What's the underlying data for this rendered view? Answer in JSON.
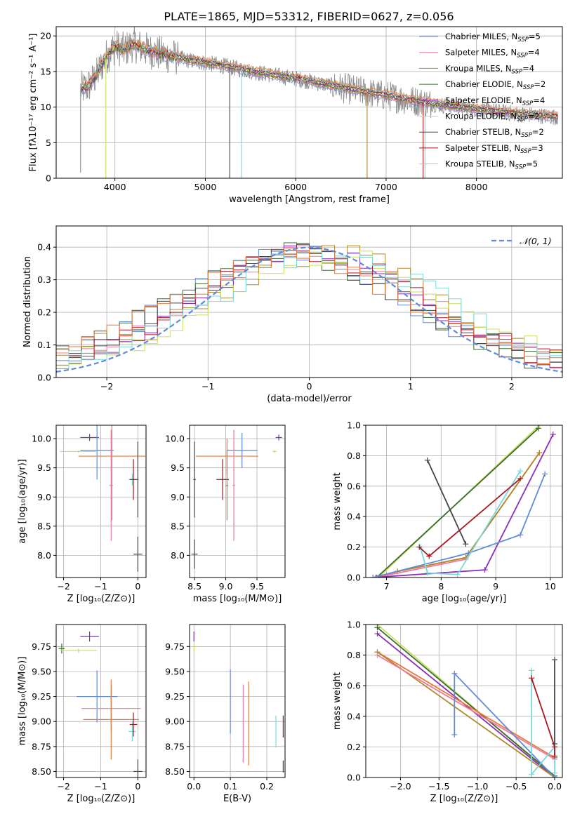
{
  "figure_title": "PLATE=1865, MJD=53312, FIBERID=0627, z=0.056",
  "colors": {
    "chabrier_miles": "#5f8ad8",
    "salpeter_miles": "#f0789c",
    "kroupa_miles": "#b0882a",
    "chabrier_elodie": "#3b6b30",
    "salpeter_elodie": "#8a2eb8",
    "kroupa_elodie": "#c8e05a",
    "chabrier_stelib": "#444444",
    "salpeter_stelib": "#a8141e",
    "kroupa_stelib": "#7ad8dc",
    "orange": "#e87a3a",
    "data": "#888888",
    "normal": "#5f8ad8"
  },
  "chart_data": [
    {
      "id": "spectrum",
      "type": "line",
      "xlabel": "wavelength [Angstrom, rest frame]",
      "ylabel": "Flux [fλ10⁻¹⁷ erg cm⁻² s⁻¹ A⁻¹]",
      "xlim": [
        3350,
        8950
      ],
      "ylim": [
        0,
        21.3
      ],
      "xticks": [
        4000,
        5000,
        6000,
        7000,
        8000
      ],
      "yticks": [
        0,
        5,
        10,
        15,
        20
      ],
      "legend_position": "top-right",
      "legend": [
        {
          "label": "Chabrier MILES, N",
          "sub": "SSP",
          "val": "=5",
          "color": "chabrier_miles"
        },
        {
          "label": "Salpeter MILES, N",
          "sub": "SSP",
          "val": "=4",
          "color": "salpeter_miles"
        },
        {
          "label": "Kroupa MILES, N",
          "sub": "SSP",
          "val": "=4",
          "color": "kroupa_miles"
        },
        {
          "label": "Chabrier ELODIE, N",
          "sub": "SSP",
          "val": "=2",
          "color": "chabrier_elodie"
        },
        {
          "label": "Salpeter ELODIE, N",
          "sub": "SSP",
          "val": "=4",
          "color": "salpeter_elodie"
        },
        {
          "label": "Kroupa ELODIE, N",
          "sub": "SSP",
          "val": "=2",
          "color": "kroupa_elodie"
        },
        {
          "label": "Chabrier STELIB, N",
          "sub": "SSP",
          "val": "=2",
          "color": "chabrier_stelib"
        },
        {
          "label": "Salpeter STELIB, N",
          "sub": "SSP",
          "val": "=3",
          "color": "salpeter_stelib"
        },
        {
          "label": "Kroupa STELIB, N",
          "sub": "SSP",
          "val": "=5",
          "color": "kroupa_stelib"
        }
      ],
      "continuum": {
        "x": [
          3620,
          3700,
          3800,
          3900,
          4000,
          4100,
          4200,
          4300,
          4400,
          4500,
          4600,
          4800,
          5000,
          5200,
          5400,
          5600,
          5800,
          6000,
          6200,
          6400,
          6600,
          6800,
          7000,
          7200,
          7400,
          7600,
          7800,
          8000,
          8200,
          8400,
          8600,
          8900
        ],
        "y": [
          12.5,
          12.8,
          14.5,
          17.0,
          18.5,
          18.0,
          18.8,
          18.3,
          17.8,
          17.5,
          17.2,
          16.6,
          16.2,
          15.8,
          15.3,
          14.8,
          14.4,
          14.0,
          13.5,
          13.0,
          12.5,
          12.0,
          11.6,
          11.1,
          10.7,
          10.3,
          10.0,
          9.7,
          9.4,
          9.1,
          8.9,
          8.6
        ]
      },
      "dips": [
        {
          "x": 3620,
          "y": 0.8,
          "color": "data"
        },
        {
          "x": 3900,
          "y": 0,
          "color": "kroupa_elodie"
        },
        {
          "x": 5270,
          "y": 0,
          "color": "chabrier_stelib"
        },
        {
          "x": 5400,
          "y": 0,
          "color": "kroupa_stelib"
        },
        {
          "x": 6790,
          "y": 0,
          "color": "kroupa_miles"
        },
        {
          "x": 7410,
          "y": 0,
          "color": "salpeter_stelib"
        },
        {
          "x": 7430,
          "y": 0,
          "color": "kroupa_stelib"
        }
      ]
    },
    {
      "id": "residuals",
      "type": "step",
      "xlabel": "(data-model)/error",
      "ylabel": "Normed distribution",
      "xlim": [
        -2.5,
        2.5
      ],
      "ylim": [
        0,
        0.465
      ],
      "xticks": [
        -2,
        -1,
        0,
        1,
        2
      ],
      "yticks": [
        0.0,
        0.1,
        0.2,
        0.3,
        0.4
      ],
      "legend_position": "top-right",
      "legend_label": "𝒩(0, 1)",
      "bins": 40,
      "series_colors": [
        "chabrier_miles",
        "salpeter_miles",
        "kroupa_miles",
        "chabrier_elodie",
        "salpeter_elodie",
        "kroupa_elodie",
        "chabrier_stelib",
        "salpeter_stelib",
        "kroupa_stelib",
        "orange"
      ]
    },
    {
      "id": "age_vs_Z",
      "type": "errorbar",
      "xlabel": "Z [log₁₀(Z/Z⊙)]",
      "ylabel": "age  [log₁₀(age/yr)]",
      "xlim": [
        -2.2,
        0.22
      ],
      "ylim": [
        7.62,
        10.23
      ],
      "xticks": [
        -2,
        -1,
        0
      ],
      "yticks": [
        8.0,
        8.5,
        9.0,
        9.5,
        10.0
      ],
      "points": [
        {
          "x": -1.3,
          "y": 10.02,
          "xerr": 0.25,
          "yerr": 0.06,
          "color": "salpeter_elodie"
        },
        {
          "x": -1.1,
          "y": 9.8,
          "xerr": 0.45,
          "yerr": 0.5,
          "color": "chabrier_miles"
        },
        {
          "x": -1.6,
          "y": 9.78,
          "xerr": 0.5,
          "yerr": 0.02,
          "color": "kroupa_elodie"
        },
        {
          "x": -0.7,
          "y": 9.7,
          "xerr": 0.9,
          "yerr": 1.1,
          "color": "orange"
        },
        {
          "x": -0.72,
          "y": 9.2,
          "xerr": 0.05,
          "yerr": 0.95,
          "color": "salpeter_miles"
        },
        {
          "x": -0.15,
          "y": 9.3,
          "xerr": 0.1,
          "yerr": 0.1,
          "color": "kroupa_stelib"
        },
        {
          "x": -0.12,
          "y": 9.3,
          "xerr": 0.1,
          "yerr": 0.35,
          "color": "salpeter_stelib"
        },
        {
          "x": 0.0,
          "y": 8.02,
          "xerr": 0.12,
          "yerr": 0.3,
          "color": "chabrier_stelib"
        },
        {
          "x": 0.0,
          "y": 9.3,
          "xerr": 0.02,
          "yerr": 0.65,
          "color": "chabrier_stelib"
        }
      ]
    },
    {
      "id": "age_vs_mass",
      "type": "errorbar",
      "xlabel": "mass [log₁₀(M/M⊙)]",
      "xlim": [
        8.42,
        9.95
      ],
      "ylim": [
        7.62,
        10.23
      ],
      "xticks": [
        8.5,
        9.0,
        9.5
      ],
      "yticks": [
        8.0,
        8.5,
        9.0,
        9.5,
        10.0
      ],
      "points": [
        {
          "x": 9.85,
          "y": 10.02,
          "xerr": 0.05,
          "yerr": 0.05,
          "color": "salpeter_elodie"
        },
        {
          "x": 9.26,
          "y": 9.8,
          "xerr": 0.25,
          "yerr": 0.3,
          "color": "chabrier_miles"
        },
        {
          "x": 9.78,
          "y": 9.78,
          "xerr": 0.03,
          "yerr": 0.02,
          "color": "kroupa_elodie"
        },
        {
          "x": 9.02,
          "y": 9.7,
          "xerr": 0.5,
          "yerr": 0.3,
          "color": "orange"
        },
        {
          "x": 9.02,
          "y": 9.2,
          "xerr": 0.02,
          "yerr": 0.6,
          "color": "kroupa_miles"
        },
        {
          "x": 9.13,
          "y": 9.2,
          "xerr": 0.02,
          "yerr": 0.95,
          "color": "salpeter_miles"
        },
        {
          "x": 8.95,
          "y": 9.3,
          "xerr": 0.05,
          "yerr": 0.1,
          "color": "kroupa_stelib"
        },
        {
          "x": 8.95,
          "y": 9.3,
          "xerr": 0.1,
          "yerr": 0.35,
          "color": "salpeter_stelib"
        },
        {
          "x": 8.5,
          "y": 8.02,
          "xerr": 0.05,
          "yerr": 0.25,
          "color": "chabrier_stelib"
        },
        {
          "x": 8.5,
          "y": 9.3,
          "xerr": 0.02,
          "yerr": 0.65,
          "color": "chabrier_stelib"
        }
      ]
    },
    {
      "id": "weight_vs_age",
      "type": "line",
      "xlabel": "age  [log₁₀(age/yr)]",
      "ylabel": "mass weight",
      "xlim": [
        6.62,
        10.22
      ],
      "ylim": [
        0,
        1
      ],
      "xticks": [
        7,
        8,
        9,
        10
      ],
      "yticks": [
        0.0,
        0.2,
        0.4,
        0.6,
        0.8,
        1.0
      ],
      "series": [
        {
          "color": "kroupa_elodie",
          "x": [
            6.85,
            9.8
          ],
          "y": [
            0.0,
            1.0
          ]
        },
        {
          "color": "chabrier_elodie",
          "x": [
            6.82,
            9.78
          ],
          "y": [
            0.0,
            0.98
          ]
        },
        {
          "color": "orange",
          "x": [
            6.8,
            7.2,
            8.45,
            9.8
          ],
          "y": [
            0.0,
            0.04,
            0.13,
            0.82
          ]
        },
        {
          "color": "kroupa_miles",
          "x": [
            6.8,
            7.2,
            8.45,
            9.8
          ],
          "y": [
            0.0,
            0.04,
            0.13,
            0.82
          ]
        },
        {
          "color": "salpeter_miles",
          "x": [
            6.8,
            8.45
          ],
          "y": [
            0.0,
            0.12
          ]
        },
        {
          "color": "salpeter_elodie",
          "x": [
            6.75,
            8.8,
            10.05
          ],
          "y": [
            0.0,
            0.05,
            0.94
          ]
        },
        {
          "color": "chabrier_miles",
          "x": [
            6.75,
            8.5,
            9.45,
            9.9
          ],
          "y": [
            0.0,
            0.16,
            0.28,
            0.68
          ]
        },
        {
          "color": "kroupa_stelib",
          "x": [
            7.62,
            7.75,
            8.3,
            9.45
          ],
          "y": [
            0.2,
            0.03,
            0.02,
            0.7
          ]
        },
        {
          "color": "salpeter_stelib",
          "x": [
            7.6,
            7.78,
            9.45
          ],
          "y": [
            0.2,
            0.14,
            0.65
          ]
        },
        {
          "color": "chabrier_stelib",
          "x": [
            7.75,
            8.45
          ],
          "y": [
            0.77,
            0.22
          ]
        }
      ]
    },
    {
      "id": "mass_vs_Z",
      "type": "errorbar",
      "xlabel": "Z [log₁₀(Z/Z⊙)]",
      "ylabel": "mass [log₁₀(M/M⊙)]",
      "xlim": [
        -2.2,
        0.22
      ],
      "ylim": [
        8.44,
        9.97
      ],
      "xticks": [
        -2,
        -1,
        0
      ],
      "yticks": [
        8.5,
        8.75,
        9.0,
        9.25,
        9.5,
        9.75
      ],
      "points": [
        {
          "x": -1.3,
          "y": 9.85,
          "xerr": 0.25,
          "yerr": 0.05,
          "color": "salpeter_elodie"
        },
        {
          "x": -2.05,
          "y": 9.73,
          "xerr": 0.08,
          "yerr": 0.05,
          "color": "chabrier_elodie"
        },
        {
          "x": -1.6,
          "y": 9.71,
          "xerr": 0.5,
          "yerr": 0.02,
          "color": "kroupa_elodie"
        },
        {
          "x": -1.1,
          "y": 9.25,
          "xerr": 0.55,
          "yerr": 0.26,
          "color": "chabrier_miles"
        },
        {
          "x": -0.72,
          "y": 9.13,
          "xerr": 0.8,
          "yerr": 0.23,
          "color": "salpeter_miles"
        },
        {
          "x": -0.72,
          "y": 9.02,
          "xerr": 0.75,
          "yerr": 0.4,
          "color": "orange"
        },
        {
          "x": -0.15,
          "y": 8.9,
          "xerr": 0.1,
          "yerr": 0.1,
          "color": "kroupa_stelib"
        },
        {
          "x": -0.12,
          "y": 8.97,
          "xerr": 0.1,
          "yerr": 0.12,
          "color": "salpeter_stelib"
        },
        {
          "x": 0.0,
          "y": 8.5,
          "xerr": 0.12,
          "yerr": 0.12,
          "color": "chabrier_stelib"
        }
      ]
    },
    {
      "id": "mass_vs_ebv",
      "type": "errorbar",
      "xlabel": "E(B-V)",
      "xlim": [
        -0.012,
        0.25
      ],
      "ylim": [
        8.44,
        9.97
      ],
      "xticks": [
        0.0,
        0.1,
        0.2
      ],
      "yticks": [
        8.5,
        8.75,
        9.0,
        9.25,
        9.5,
        9.75
      ],
      "points": [
        {
          "x": 0.0,
          "y": 9.85,
          "xerr": 0.0,
          "yerr": 0.05,
          "color": "salpeter_elodie"
        },
        {
          "x": 0.0,
          "y": 9.73,
          "xerr": 0.0,
          "yerr": 0.04,
          "color": "kroupa_elodie"
        },
        {
          "x": 0.1,
          "y": 9.2,
          "xerr": 0.0,
          "yerr": 0.32,
          "color": "chabrier_miles"
        },
        {
          "x": 0.135,
          "y": 8.98,
          "xerr": 0.0,
          "yerr": 0.39,
          "color": "salpeter_miles"
        },
        {
          "x": 0.15,
          "y": 8.98,
          "xerr": 0.0,
          "yerr": 0.42,
          "color": "orange"
        },
        {
          "x": 0.225,
          "y": 8.9,
          "xerr": 0.0,
          "yerr": 0.16,
          "color": "kroupa_stelib"
        },
        {
          "x": 0.245,
          "y": 8.95,
          "xerr": 0.0,
          "yerr": 0.11,
          "color": "salpeter_stelib"
        },
        {
          "x": 0.245,
          "y": 8.55,
          "xerr": 0.0,
          "yerr": 0.06,
          "color": "chabrier_stelib"
        }
      ]
    },
    {
      "id": "weight_vs_Z",
      "type": "line",
      "xlabel": "Z [log₁₀(Z/Z⊙)]",
      "ylabel": "mass weight",
      "xlim": [
        -2.45,
        0.1
      ],
      "ylim": [
        0,
        1
      ],
      "xticks": [
        -2.0,
        -1.5,
        -1.0,
        -0.5,
        0.0
      ],
      "yticks": [
        0.0,
        0.2,
        0.4,
        0.6,
        0.8,
        1.0
      ],
      "series": [
        {
          "color": "kroupa_elodie",
          "x": [
            -2.3,
            0.0
          ],
          "y": [
            1.0,
            0.0
          ]
        },
        {
          "color": "chabrier_elodie",
          "x": [
            -2.3,
            0.0
          ],
          "y": [
            0.98,
            0.01
          ]
        },
        {
          "color": "salpeter_elodie",
          "x": [
            -2.3,
            0.0
          ],
          "y": [
            0.94,
            0.0
          ]
        },
        {
          "color": "orange",
          "x": [
            -2.3,
            0.0
          ],
          "y": [
            0.82,
            0.13
          ]
        },
        {
          "color": "kroupa_miles",
          "x": [
            -2.3,
            0.0
          ],
          "y": [
            0.82,
            0.0
          ]
        },
        {
          "color": "salpeter_miles",
          "x": [
            -2.3,
            0.0
          ],
          "y": [
            0.8,
            0.12
          ]
        },
        {
          "color": "chabrier_miles",
          "x": [
            -1.3,
            -1.3,
            0.0
          ],
          "y": [
            0.28,
            0.68,
            0.0
          ]
        },
        {
          "color": "kroupa_stelib",
          "x": [
            -0.3,
            -0.3,
            0.0,
            0.0
          ],
          "y": [
            0.7,
            0.02,
            0.2,
            0.03
          ]
        },
        {
          "color": "salpeter_stelib",
          "x": [
            -0.3,
            0.0,
            0.0
          ],
          "y": [
            0.65,
            0.2,
            0.14
          ]
        },
        {
          "color": "chabrier_stelib",
          "x": [
            0.0,
            0.0
          ],
          "y": [
            0.77,
            0.22
          ]
        }
      ]
    }
  ]
}
